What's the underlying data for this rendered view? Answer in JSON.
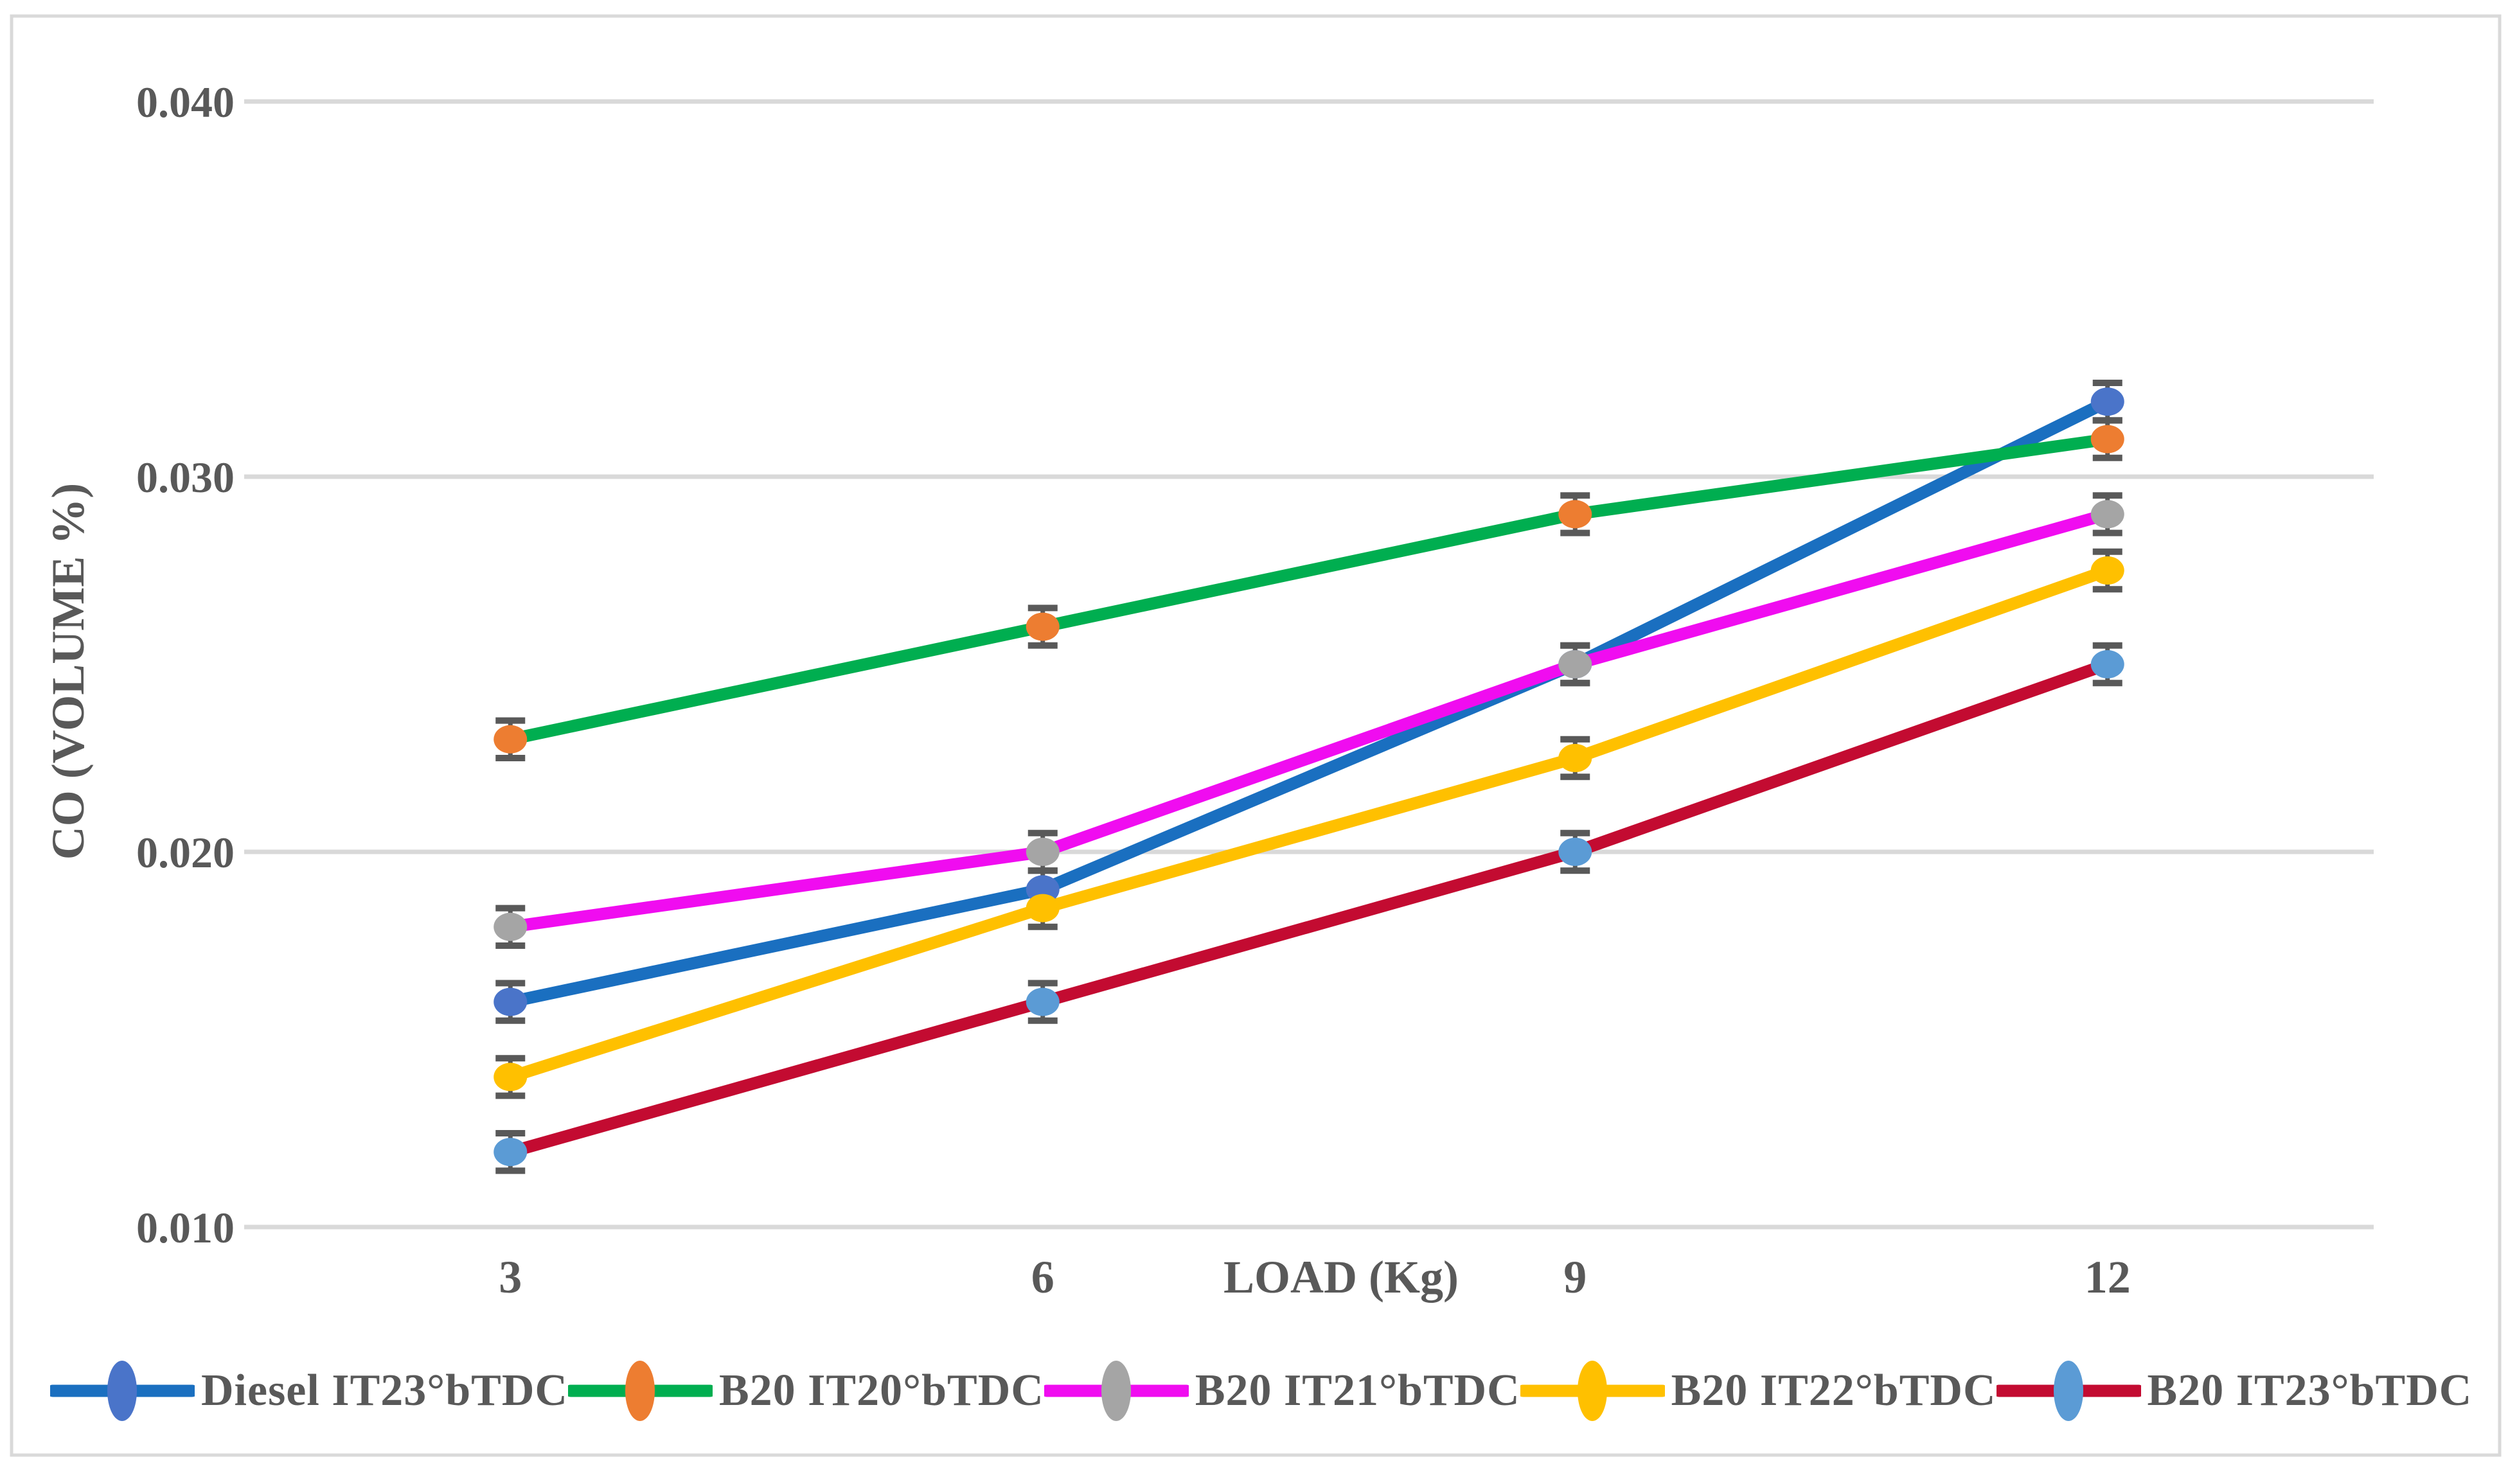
{
  "figure": {
    "background": "#FFFFFF",
    "border_color": "#D9D9D9",
    "text_color": "#595959",
    "gridline_color": "#D9D9D9",
    "error_bar_color": "#595959"
  },
  "chart_data": {
    "type": "line",
    "title": "",
    "xlabel": "LOAD (Kg)",
    "ylabel": "CO (VOLUME %)",
    "categories": [
      3,
      6,
      9,
      12
    ],
    "x_tick_labels": [
      "3",
      "6",
      "9",
      "12"
    ],
    "y_ticks": [
      0.04,
      0.03,
      0.02,
      0.01
    ],
    "y_tick_labels": [
      "0.040",
      "0.030",
      "0.020",
      "0.010"
    ],
    "ylim": [
      0.01,
      0.04
    ],
    "grid": "horizontal-major",
    "legend_position": "bottom",
    "error_bar": 0.0005,
    "marker_shape": "ellipse",
    "series": [
      {
        "name": "Diesel IT23°bTDC",
        "line_color": "#1A6FC0",
        "marker_color": "#4A74C9",
        "values": [
          0.016,
          0.019,
          0.025,
          0.032
        ]
      },
      {
        "name": "B20 IT20°bTDC",
        "line_color": "#00AE50",
        "marker_color": "#ED7D31",
        "values": [
          0.023,
          0.026,
          0.029,
          0.031
        ]
      },
      {
        "name": "B20 IT21°bTDC",
        "line_color": "#F00CF0",
        "marker_color": "#A5A5A5",
        "values": [
          0.018,
          0.02,
          0.025,
          0.029
        ]
      },
      {
        "name": "B20 IT22°bTDC",
        "line_color": "#FFC000",
        "marker_color": "#FFC000",
        "values": [
          0.014,
          0.0185,
          0.0225,
          0.0275
        ]
      },
      {
        "name": "B20 IT23°bTDC",
        "line_color": "#C30B31",
        "marker_color": "#5B9BD5",
        "values": [
          0.012,
          0.016,
          0.02,
          0.025
        ]
      }
    ]
  }
}
